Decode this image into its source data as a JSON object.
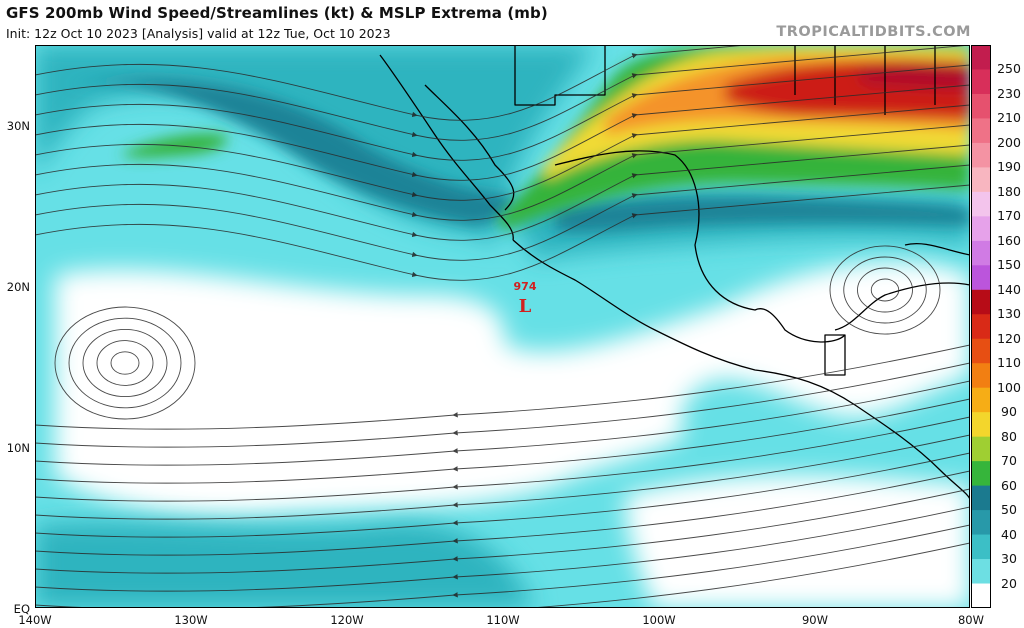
{
  "header": {
    "title": "GFS 200mb Wind Speed/Streamlines (kt) & MSLP Extrema (mb)",
    "subtitle": "Init: 12z Oct 10 2023   [Analysis]   valid at 12z Tue, Oct 10 2023",
    "brand": "TROPICALTIDBITS.COM"
  },
  "axes": {
    "lat_labels": [
      "30N",
      "20N",
      "10N",
      "EQ"
    ],
    "lon_labels": [
      "140W",
      "130W",
      "120W",
      "110W",
      "100W",
      "90W",
      "80W"
    ]
  },
  "low": {
    "pressure": "974",
    "symbol": "L",
    "color": "#d12020"
  },
  "colorbar": {
    "labels": [
      "250",
      "230",
      "210",
      "200",
      "190",
      "180",
      "170",
      "160",
      "150",
      "140",
      "130",
      "120",
      "110",
      "100",
      "90",
      "80",
      "70",
      "60",
      "50",
      "40",
      "30",
      "20"
    ],
    "colors": [
      "#c21d4e",
      "#d82f5a",
      "#e6516e",
      "#ef7287",
      "#f493a3",
      "#f8b6c0",
      "#f3c4ec",
      "#e6a2ea",
      "#d07be4",
      "#bb55dc",
      "#b70c17",
      "#d92a17",
      "#e74f13",
      "#f27f12",
      "#f6ad16",
      "#f3d62c",
      "#9fcf32",
      "#36b53b",
      "#1b7a8f",
      "#2899a9",
      "#3cbfc6",
      "#6ddfe3",
      "#ffffff"
    ]
  },
  "palette": {
    "calm": "#ffffff",
    "light": "#66e0e6",
    "medium": "#2fb4bf",
    "strong": "#1b8397",
    "jet_green": "#35b33b",
    "jet_yellow": "#f1da34",
    "jet_orange": "#f4932a",
    "jet_red": "#cc1a16"
  }
}
